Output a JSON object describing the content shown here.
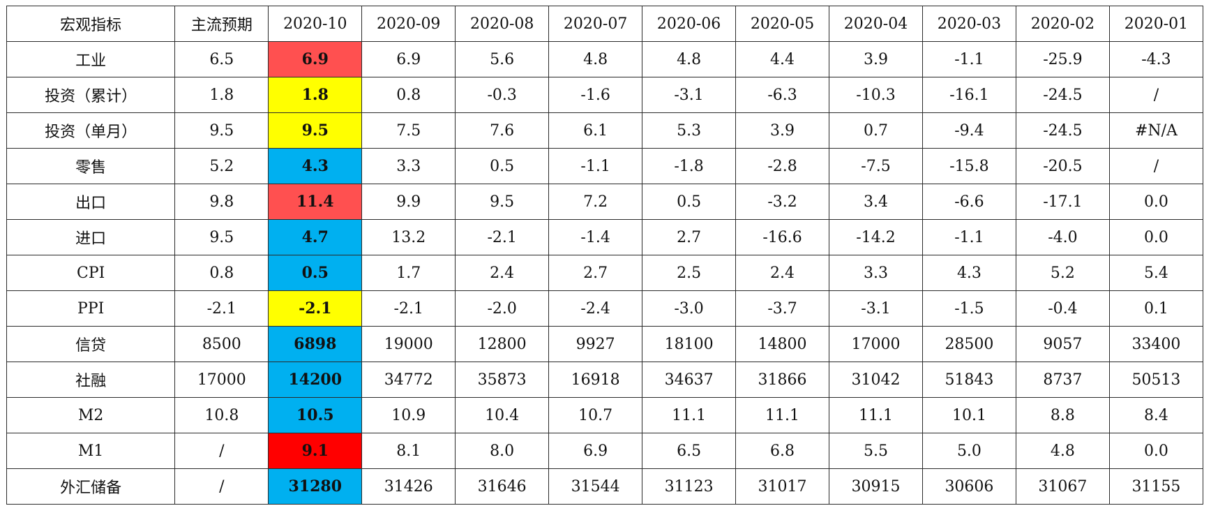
{
  "table": {
    "headers": [
      "宏观指标",
      "主流预期",
      "2020-10",
      "2020-09",
      "2020-08",
      "2020-07",
      "2020-06",
      "2020-05",
      "2020-04",
      "2020-03",
      "2020-02",
      "2020-01"
    ],
    "highlight_colors": {
      "red": "#ff5050",
      "bright_red": "#ff0000",
      "yellow": "#ffff00",
      "blue": "#00b0f0"
    },
    "rows": [
      {
        "label": "工业",
        "expect": "6.5",
        "current": "6.9",
        "current_color": "#ff5050",
        "history": [
          "6.9",
          "5.6",
          "4.8",
          "4.8",
          "4.4",
          "3.9",
          "-1.1",
          "-25.9",
          "-4.3"
        ]
      },
      {
        "label": "投资（累计）",
        "expect": "1.8",
        "current": "1.8",
        "current_color": "#ffff00",
        "history": [
          "0.8",
          "-0.3",
          "-1.6",
          "-3.1",
          "-6.3",
          "-10.3",
          "-16.1",
          "-24.5",
          "/"
        ]
      },
      {
        "label": "投资（单月）",
        "expect": "9.5",
        "current": "9.5",
        "current_color": "#ffff00",
        "history": [
          "7.5",
          "7.6",
          "6.1",
          "5.3",
          "3.9",
          "0.7",
          "-9.4",
          "-24.5",
          "#N/A"
        ]
      },
      {
        "label": "零售",
        "expect": "5.2",
        "current": "4.3",
        "current_color": "#00b0f0",
        "history": [
          "3.3",
          "0.5",
          "-1.1",
          "-1.8",
          "-2.8",
          "-7.5",
          "-15.8",
          "-20.5",
          "/"
        ]
      },
      {
        "label": "出口",
        "expect": "9.8",
        "current": "11.4",
        "current_color": "#ff5050",
        "history": [
          "9.9",
          "9.5",
          "7.2",
          "0.5",
          "-3.2",
          "3.4",
          "-6.6",
          "-17.1",
          "0.0"
        ]
      },
      {
        "label": "进口",
        "expect": "9.5",
        "current": "4.7",
        "current_color": "#00b0f0",
        "history": [
          "13.2",
          "-2.1",
          "-1.4",
          "2.7",
          "-16.6",
          "-14.2",
          "-1.1",
          "-4.0",
          "0.0"
        ]
      },
      {
        "label": "CPI",
        "expect": "0.8",
        "current": "0.5",
        "current_color": "#00b0f0",
        "history": [
          "1.7",
          "2.4",
          "2.7",
          "2.5",
          "2.4",
          "3.3",
          "4.3",
          "5.2",
          "5.4"
        ]
      },
      {
        "label": "PPI",
        "expect": "-2.1",
        "current": "-2.1",
        "current_color": "#ffff00",
        "history": [
          "-2.1",
          "-2.0",
          "-2.4",
          "-3.0",
          "-3.7",
          "-3.1",
          "-1.5",
          "-0.4",
          "0.1"
        ]
      },
      {
        "label": "信贷",
        "expect": "8500",
        "current": "6898",
        "current_color": "#00b0f0",
        "history": [
          "19000",
          "12800",
          "9927",
          "18100",
          "14800",
          "17000",
          "28500",
          "9057",
          "33400"
        ]
      },
      {
        "label": "社融",
        "expect": "17000",
        "current": "14200",
        "current_color": "#00b0f0",
        "history": [
          "34772",
          "35873",
          "16918",
          "34637",
          "31866",
          "31042",
          "51843",
          "8737",
          "50513"
        ]
      },
      {
        "label": "M2",
        "expect": "10.8",
        "current": "10.5",
        "current_color": "#00b0f0",
        "history": [
          "10.9",
          "10.4",
          "10.7",
          "11.1",
          "11.1",
          "11.1",
          "10.1",
          "8.8",
          "8.4"
        ]
      },
      {
        "label": "M1",
        "expect": "/",
        "current": "9.1",
        "current_color": "#ff0000",
        "history": [
          "8.1",
          "8.0",
          "6.9",
          "6.5",
          "6.8",
          "5.5",
          "5.0",
          "4.8",
          "0.0"
        ]
      },
      {
        "label": "外汇储备",
        "expect": "/",
        "current": "31280",
        "current_color": "#00b0f0",
        "history": [
          "31426",
          "31646",
          "31544",
          "31123",
          "31017",
          "30915",
          "30606",
          "31067",
          "31155"
        ]
      }
    ]
  }
}
